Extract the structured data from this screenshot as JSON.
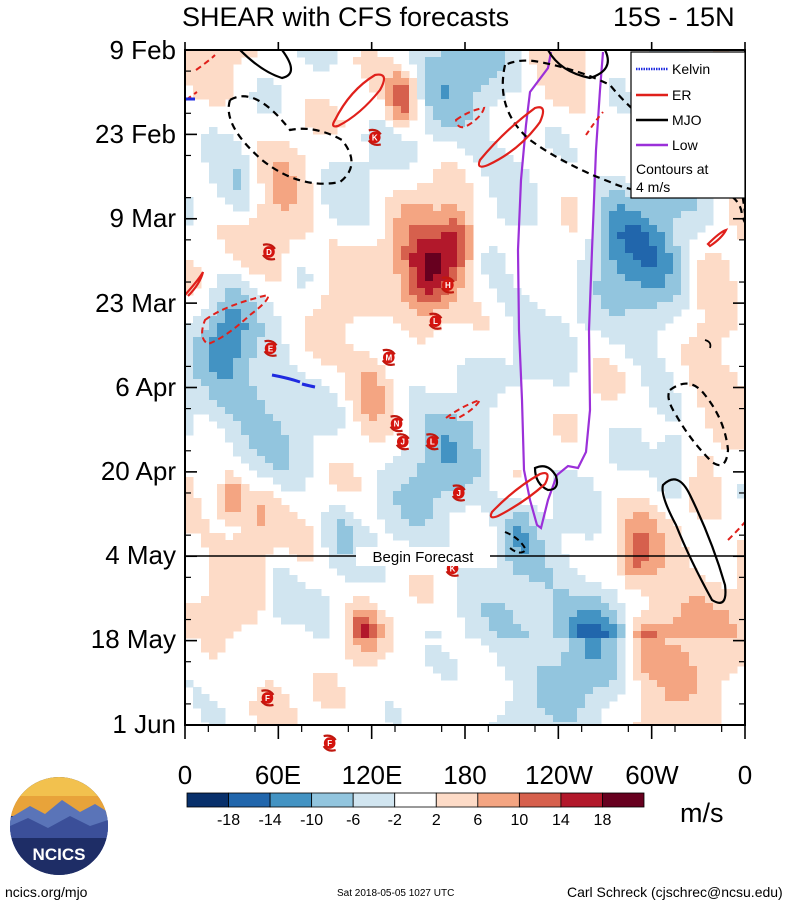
{
  "chart_data": {
    "type": "heatmap",
    "title": "SHEAR with CFS forecasts",
    "region_label": "15S - 15N",
    "y_ticks": [
      "9 Feb",
      "23 Feb",
      "9 Mar",
      "23 Mar",
      "6 Apr",
      "20 Apr",
      "4 May",
      "18 May",
      "1 Jun"
    ],
    "x_ticks": [
      "0",
      "60E",
      "120E",
      "180",
      "120W",
      "60W",
      "0"
    ],
    "forecast_start": "4 May",
    "forecast_label": "Begin Forecast",
    "legend": {
      "entries": [
        {
          "name": "Kelvin",
          "color": "#1f2be0"
        },
        {
          "name": "ER",
          "color": "#e0201b"
        },
        {
          "name": "MJO",
          "color": "#000000"
        },
        {
          "name": "Low",
          "color": "#9b30d9"
        }
      ],
      "note_line1": "Contours at",
      "note_line2": "4 m/s",
      "placement": "top-right"
    },
    "colorbar": {
      "labels": [
        "-18",
        "-14",
        "-10",
        "-6",
        "-2",
        "2",
        "6",
        "10",
        "14",
        "18"
      ],
      "colors": [
        "#08306b",
        "#2166ac",
        "#4393c3",
        "#92c5de",
        "#d1e5f0",
        "#ffffff",
        "#fddbc7",
        "#f4a582",
        "#d6604d",
        "#b2182b",
        "#67001f"
      ],
      "units": "m/s"
    },
    "storm_markers": [
      {
        "label": "K",
        "lon": 122,
        "day": 14.5
      },
      {
        "label": "D",
        "lon": 54,
        "day": 33.5
      },
      {
        "label": "H",
        "lon": 169,
        "day": 39
      },
      {
        "label": "E",
        "lon": 55,
        "day": 49.5
      },
      {
        "label": "M",
        "lon": 131,
        "day": 51
      },
      {
        "label": "L",
        "lon": 161,
        "day": 45
      },
      {
        "label": "N",
        "lon": 136,
        "day": 62
      },
      {
        "label": "J",
        "lon": 140,
        "day": 65
      },
      {
        "label": "L",
        "lon": 159,
        "day": 65
      },
      {
        "label": "J",
        "lon": 176,
        "day": 73.5
      },
      {
        "label": "K",
        "lon": 172,
        "day": 86
      },
      {
        "label": "F",
        "lon": 53,
        "day": 107.5
      },
      {
        "label": "F",
        "lon": 93,
        "day": 115
      }
    ]
  },
  "logo": {
    "text": "NCICS"
  },
  "footer": {
    "left": "ncics.org/mjo",
    "middle": "Sat 2018-05-05 1027 UTC",
    "right": "Carl Schreck (cjschrec@ncsu.edu)"
  }
}
